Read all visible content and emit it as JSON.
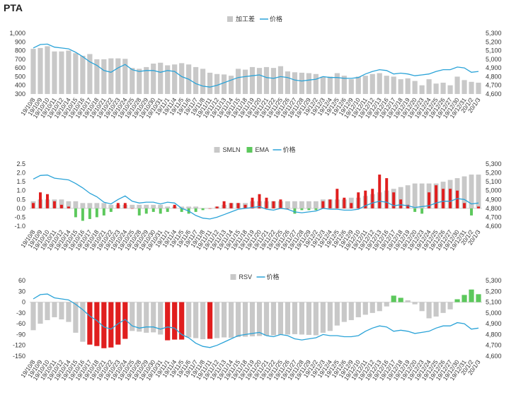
{
  "page": {
    "title": "PTA"
  },
  "colors": {
    "bar_gray": "#c8c8c8",
    "line_blue": "#2aa3d8",
    "bar_red": "#e01e1e",
    "bar_green": "#5cc85c",
    "text": "#333333"
  },
  "chart_data": [
    {
      "type": "bar",
      "legend_position": "top-center",
      "legend": [
        {
          "label": "加工差",
          "color": "#c8c8c8",
          "kind": "bar"
        },
        {
          "label": "价格",
          "color": "#2aa3d8",
          "kind": "line"
        }
      ],
      "x": [
        "19/10/8",
        "19/10/9",
        "19/10/10",
        "19/10/11",
        "19/10/12",
        "19/10/14",
        "19/10/15",
        "19/10/16",
        "19/10/17",
        "19/10/18",
        "19/10/21",
        "19/10/22",
        "19/10/23",
        "19/10/24",
        "19/10/25",
        "19/10/28",
        "19/10/29",
        "19/10/30",
        "19/10/31",
        "19/11/1",
        "19/11/4",
        "19/11/5",
        "19/11/6",
        "19/11/7",
        "19/11/8",
        "19/11/11",
        "19/11/12",
        "19/11/13",
        "19/11/14",
        "19/11/15",
        "19/11/18",
        "19/11/19",
        "19/11/20",
        "19/11/21",
        "19/11/22",
        "19/11/25",
        "19/11/26",
        "19/11/27",
        "19/11/28",
        "19/11/29",
        "19/12/2",
        "19/12/3",
        "19/12/4",
        "19/12/5",
        "19/12/6",
        "19/12/9",
        "19/12/10",
        "19/12/11",
        "19/12/12",
        "19/12/13",
        "19/12/16",
        "19/12/17",
        "19/12/18",
        "19/12/19",
        "19/12/20",
        "19/12/23",
        "19/12/24",
        "19/12/25",
        "19/12/26",
        "19/12/27",
        "19/12/30",
        "19/12/31",
        "20/1/2",
        "20/1/3"
      ],
      "series": [
        {
          "name": "加工差",
          "axis": "left",
          "kind": "bar",
          "values": [
            820,
            830,
            850,
            790,
            790,
            800,
            770,
            740,
            760,
            700,
            700,
            710,
            710,
            705,
            600,
            590,
            610,
            650,
            660,
            630,
            640,
            655,
            640,
            610,
            590,
            545,
            530,
            525,
            510,
            590,
            580,
            610,
            600,
            610,
            600,
            620,
            560,
            550,
            545,
            540,
            530,
            500,
            500,
            540,
            510,
            470,
            500,
            510,
            530,
            540,
            510,
            500,
            470,
            480,
            450,
            400,
            470,
            420,
            430,
            400,
            500,
            460,
            440,
            430
          ]
        },
        {
          "name": "价格",
          "axis": "right",
          "kind": "line",
          "values": [
            5130,
            5170,
            5175,
            5140,
            5130,
            5120,
            5080,
            5030,
            4970,
            4930,
            4870,
            4850,
            4900,
            4940,
            4880,
            4860,
            4870,
            4870,
            4850,
            4870,
            4860,
            4800,
            4770,
            4720,
            4690,
            4680,
            4700,
            4730,
            4760,
            4790,
            4800,
            4810,
            4820,
            4790,
            4780,
            4800,
            4790,
            4760,
            4750,
            4760,
            4770,
            4800,
            4790,
            4790,
            4780,
            4780,
            4790,
            4830,
            4860,
            4880,
            4870,
            4830,
            4840,
            4830,
            4810,
            4820,
            4830,
            4860,
            4880,
            4880,
            4910,
            4900,
            4850,
            4860
          ]
        }
      ],
      "yleft": {
        "min": 300,
        "max": 1000,
        "ticks": [
          "300",
          "400",
          "500",
          "600",
          "700",
          "800",
          "900",
          "1,000"
        ]
      },
      "yright": {
        "min": 4600,
        "max": 5300,
        "ticks": [
          "4,600",
          "4,700",
          "4,800",
          "4,900",
          "5,000",
          "5,100",
          "5,200",
          "5,300"
        ]
      }
    },
    {
      "type": "bar",
      "legend_position": "top-center",
      "legend": [
        {
          "label": "SMLN",
          "color": "#c8c8c8",
          "kind": "bar"
        },
        {
          "label": "EMA",
          "color": "#5cc85c",
          "kind": "bar"
        },
        {
          "label": "价格",
          "color": "#2aa3d8",
          "kind": "line"
        }
      ],
      "x": [
        "19/10/8",
        "19/10/9",
        "19/10/10",
        "19/10/11",
        "19/10/12",
        "19/10/14",
        "19/10/15",
        "19/10/16",
        "19/10/17",
        "19/10/18",
        "19/10/21",
        "19/10/22",
        "19/10/23",
        "19/10/24",
        "19/10/25",
        "19/10/28",
        "19/10/29",
        "19/10/30",
        "19/10/31",
        "19/11/1",
        "19/11/4",
        "19/11/5",
        "19/11/6",
        "19/11/7",
        "19/11/8",
        "19/11/11",
        "19/11/12",
        "19/11/13",
        "19/11/14",
        "19/11/15",
        "19/11/18",
        "19/11/19",
        "19/11/20",
        "19/11/21",
        "19/11/22",
        "19/11/25",
        "19/11/26",
        "19/11/27",
        "19/11/28",
        "19/11/29",
        "19/12/2",
        "19/12/3",
        "19/12/4",
        "19/12/5",
        "19/12/6",
        "19/12/9",
        "19/12/10",
        "19/12/11",
        "19/12/12",
        "19/12/13",
        "19/12/16",
        "19/12/17",
        "19/12/18",
        "19/12/19",
        "19/12/20",
        "19/12/23",
        "19/12/24",
        "19/12/25",
        "19/12/26",
        "19/12/27",
        "19/12/30",
        "19/12/31",
        "20/1/2",
        "20/1/3"
      ],
      "series": [
        {
          "name": "SMLN",
          "axis": "left",
          "kind": "bar",
          "values": [
            0.4,
            0.5,
            0.5,
            0.5,
            0.5,
            0.4,
            0.4,
            0.3,
            0.3,
            0.3,
            0.3,
            0.2,
            0.2,
            0.2,
            0.2,
            0.2,
            0.2,
            0.2,
            0.2,
            0.1,
            0.1,
            0.1,
            0.1,
            0.1,
            0.0,
            0.0,
            0.1,
            0.2,
            0.3,
            0.3,
            0.3,
            0.4,
            0.4,
            0.4,
            0.4,
            0.4,
            0.4,
            0.4,
            0.4,
            0.4,
            0.4,
            0.5,
            0.5,
            0.5,
            0.5,
            0.6,
            0.6,
            0.7,
            0.8,
            0.9,
            1.0,
            1.1,
            1.2,
            1.3,
            1.4,
            1.4,
            1.4,
            1.4,
            1.5,
            1.6,
            1.7,
            1.8,
            1.9,
            1.9
          ]
        },
        {
          "name": "EMA",
          "axis": "left",
          "kind": "bar",
          "values": [
            0.3,
            0.9,
            0.8,
            0.4,
            0.2,
            0.1,
            -0.5,
            -0.7,
            -0.6,
            -0.5,
            -0.4,
            -0.2,
            0.3,
            0.3,
            0.0,
            -0.4,
            -0.3,
            -0.2,
            -0.3,
            -0.2,
            0.2,
            -0.2,
            -0.3,
            -0.2,
            -0.1,
            0.0,
            0.1,
            0.4,
            0.3,
            0.3,
            0.2,
            0.6,
            0.8,
            0.6,
            0.4,
            0.5,
            0.0,
            -0.3,
            -0.1,
            -0.1,
            -0.1,
            0.4,
            0.5,
            1.1,
            0.6,
            0.3,
            0.9,
            1.0,
            1.1,
            1.9,
            1.7,
            0.9,
            0.5,
            0.2,
            -0.2,
            -0.3,
            0.9,
            1.3,
            1.1,
            1.1,
            1.0,
            0.3,
            -0.4,
            0.1
          ]
        },
        {
          "name": "价格",
          "axis": "right",
          "kind": "line",
          "values": [
            5130,
            5170,
            5175,
            5140,
            5130,
            5120,
            5080,
            5030,
            4970,
            4930,
            4870,
            4850,
            4900,
            4940,
            4880,
            4860,
            4870,
            4870,
            4850,
            4870,
            4860,
            4800,
            4770,
            4720,
            4690,
            4680,
            4700,
            4730,
            4760,
            4790,
            4800,
            4810,
            4820,
            4790,
            4780,
            4800,
            4790,
            4760,
            4750,
            4760,
            4770,
            4800,
            4790,
            4790,
            4780,
            4780,
            4790,
            4830,
            4860,
            4880,
            4870,
            4830,
            4840,
            4830,
            4810,
            4820,
            4830,
            4860,
            4880,
            4880,
            4910,
            4900,
            4850,
            4860
          ]
        }
      ],
      "yleft": {
        "min": -1.0,
        "max": 2.5,
        "ticks": [
          "-1.0",
          "-0.5",
          "0.0",
          "0.5",
          "1.0",
          "1.5",
          "2.0",
          "2.5"
        ]
      },
      "yright": {
        "min": 4600,
        "max": 5300,
        "ticks": [
          "4,600",
          "4,700",
          "4,800",
          "4,900",
          "5,000",
          "5,100",
          "5,200",
          "5,300"
        ]
      }
    },
    {
      "type": "bar",
      "legend_position": "top-center",
      "legend": [
        {
          "label": "RSV",
          "color": "#c8c8c8",
          "kind": "bar"
        },
        {
          "label": "价格",
          "color": "#2aa3d8",
          "kind": "line"
        }
      ],
      "x": [
        "19/10/8",
        "19/10/9",
        "19/10/10",
        "19/10/11",
        "19/10/12",
        "19/10/14",
        "19/10/15",
        "19/10/16",
        "19/10/17",
        "19/10/18",
        "19/10/21",
        "19/10/22",
        "19/10/23",
        "19/10/24",
        "19/10/25",
        "19/10/28",
        "19/10/29",
        "19/10/30",
        "19/10/31",
        "19/11/1",
        "19/11/4",
        "19/11/5",
        "19/11/6",
        "19/11/7",
        "19/11/8",
        "19/11/11",
        "19/11/12",
        "19/11/13",
        "19/11/14",
        "19/11/15",
        "19/11/18",
        "19/11/19",
        "19/11/20",
        "19/11/21",
        "19/11/22",
        "19/11/25",
        "19/11/26",
        "19/11/27",
        "19/11/28",
        "19/11/29",
        "19/12/2",
        "19/12/3",
        "19/12/4",
        "19/12/5",
        "19/12/6",
        "19/12/9",
        "19/12/10",
        "19/12/11",
        "19/12/12",
        "19/12/13",
        "19/12/16",
        "19/12/17",
        "19/12/18",
        "19/12/19",
        "19/12/20",
        "19/12/23",
        "19/12/24",
        "19/12/25",
        "19/12/26",
        "19/12/27",
        "19/12/30",
        "19/12/31",
        "20/1/2",
        "20/1/3"
      ],
      "series": [
        {
          "name": "RSV",
          "axis": "left",
          "kind": "bar",
          "highlight": [
            null,
            null,
            null,
            null,
            null,
            null,
            null,
            null,
            "red",
            "red",
            "red",
            "red",
            "red",
            "red",
            null,
            null,
            null,
            null,
            null,
            "red",
            "red",
            "red",
            null,
            null,
            null,
            "red",
            null,
            null,
            null,
            null,
            null,
            null,
            null,
            null,
            null,
            null,
            null,
            null,
            null,
            null,
            null,
            null,
            null,
            null,
            null,
            null,
            null,
            null,
            null,
            null,
            null,
            "green",
            "green",
            null,
            null,
            null,
            null,
            null,
            null,
            null,
            "green",
            "green",
            "green",
            "green"
          ],
          "values": [
            -78,
            -60,
            -50,
            -42,
            -48,
            -55,
            -85,
            -110,
            -118,
            -122,
            -128,
            -126,
            -118,
            -102,
            -80,
            -82,
            -85,
            -84,
            -90,
            -106,
            -104,
            -104,
            -98,
            -100,
            -103,
            -102,
            -100,
            -98,
            -99,
            -97,
            -96,
            -95,
            -94,
            -93,
            -92,
            -91,
            -90,
            -89,
            -90,
            -91,
            -92,
            -85,
            -80,
            -65,
            -55,
            -50,
            -42,
            -35,
            -30,
            -25,
            -12,
            18,
            12,
            5,
            -6,
            -25,
            -45,
            -40,
            -30,
            -20,
            8,
            20,
            35,
            22
          ]
        },
        {
          "name": "价格",
          "axis": "right",
          "kind": "line",
          "values": [
            5130,
            5170,
            5175,
            5140,
            5130,
            5120,
            5080,
            5030,
            4970,
            4930,
            4870,
            4850,
            4900,
            4940,
            4880,
            4860,
            4870,
            4870,
            4850,
            4870,
            4860,
            4800,
            4770,
            4720,
            4690,
            4680,
            4700,
            4730,
            4760,
            4790,
            4800,
            4810,
            4820,
            4790,
            4780,
            4800,
            4790,
            4760,
            4750,
            4760,
            4770,
            4800,
            4790,
            4790,
            4780,
            4780,
            4790,
            4830,
            4860,
            4880,
            4870,
            4830,
            4840,
            4830,
            4810,
            4820,
            4830,
            4860,
            4880,
            4880,
            4910,
            4900,
            4850,
            4860
          ]
        }
      ],
      "yleft": {
        "min": -150,
        "max": 60,
        "ticks": [
          "-150",
          "-120",
          "-90",
          "-60",
          "-30",
          "0",
          "30",
          "60"
        ]
      },
      "yright": {
        "min": 4600,
        "max": 5300,
        "ticks": [
          "4,600",
          "4,700",
          "4,800",
          "4,900",
          "5,000",
          "5,100",
          "5,200",
          "5,300"
        ]
      }
    }
  ]
}
